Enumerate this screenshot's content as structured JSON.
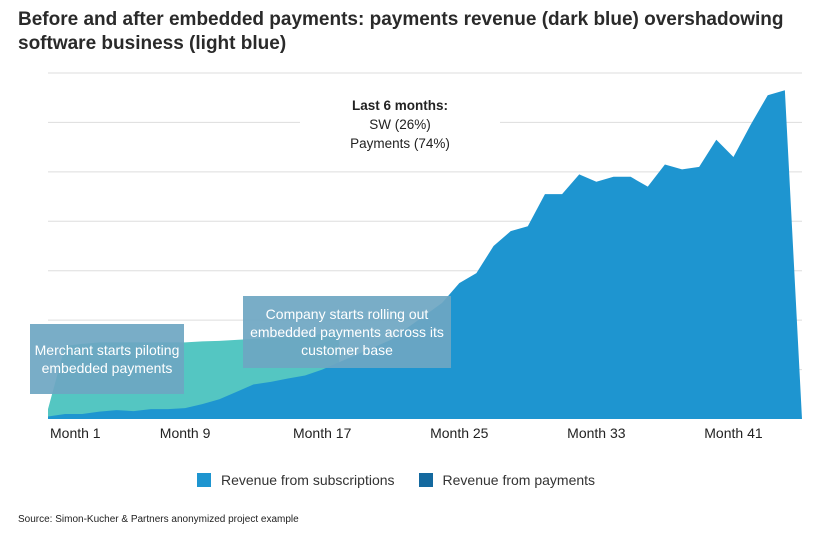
{
  "title": "Before and after embedded payments: payments revenue (dark blue) overshadowing software business (light blue)",
  "source": "Source: Simon-Kucher & Partners anonymized project example",
  "annotations": {
    "summary_head": "Last 6 months:",
    "summary_sw": "SW (26%)",
    "summary_payments": "Payments (74%)",
    "callout_merchant": "Merchant starts piloting embedded payments",
    "callout_rollout": "Company starts rolling out embedded payments across its customer base"
  },
  "colors": {
    "subscriptions": "#54c6c2",
    "payments": "#1e95d0",
    "legend_subscriptions": "#1e95d0",
    "legend_payments": "#14699f",
    "callout": "#6ea6c2",
    "grid": "#dddddd"
  },
  "chart_data": {
    "type": "area",
    "title": "Before and after embedded payments: payments revenue (dark blue) overshadowing software business (light blue)",
    "xlabel": "",
    "ylabel": "",
    "x_tick_labels": [
      "Month 1",
      "Month 9",
      "Month 17",
      "Month 25",
      "Month 33",
      "Month 41"
    ],
    "x_ticks": [
      1,
      9,
      17,
      25,
      33,
      41
    ],
    "xlim": [
      1,
      45
    ],
    "ylim": [
      0,
      7
    ],
    "grid": true,
    "legend_position": "bottom",
    "legend": [
      "Revenue from subscriptions",
      "Revenue from payments"
    ],
    "series": [
      {
        "name": "Revenue from subscriptions",
        "x": [
          1,
          2,
          3,
          4,
          5,
          6,
          7,
          8,
          9,
          10,
          11,
          12,
          13,
          14,
          15,
          16,
          17,
          18
        ],
        "values": [
          0.2,
          1.48,
          1.52,
          1.55,
          1.55,
          1.55,
          1.55,
          1.55,
          1.55,
          1.57,
          1.58,
          1.6,
          1.62,
          1.64,
          1.66,
          1.68,
          1.72,
          1.78
        ]
      },
      {
        "name": "Revenue from payments",
        "x": [
          1,
          2,
          3,
          4,
          5,
          6,
          7,
          8,
          9,
          10,
          11,
          12,
          13,
          14,
          15,
          16,
          17,
          18,
          19,
          20,
          21,
          22,
          23,
          24,
          25,
          26,
          27,
          28,
          29,
          30,
          31,
          32,
          33,
          34,
          35,
          36,
          37,
          38,
          39,
          40,
          41,
          42,
          43,
          44,
          45
        ],
        "values": [
          0.05,
          0.1,
          0.1,
          0.15,
          0.18,
          0.16,
          0.2,
          0.2,
          0.22,
          0.3,
          0.4,
          0.55,
          0.7,
          0.75,
          0.82,
          0.88,
          1.0,
          1.15,
          1.3,
          1.45,
          1.6,
          1.85,
          2.1,
          2.35,
          2.75,
          2.95,
          3.5,
          3.8,
          3.9,
          4.55,
          4.55,
          4.95,
          4.8,
          4.9,
          4.9,
          4.7,
          5.15,
          5.05,
          5.1,
          5.65,
          5.3,
          5.95,
          6.55,
          6.65,
          0
        ]
      }
    ]
  }
}
